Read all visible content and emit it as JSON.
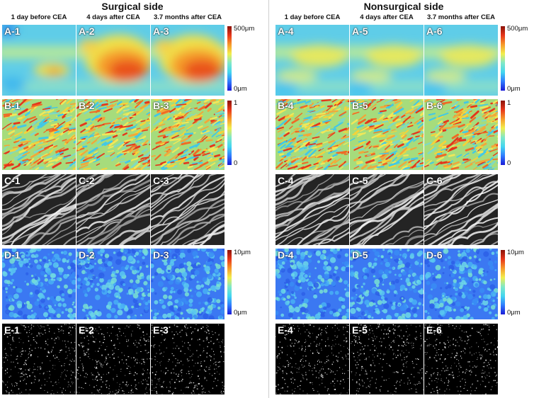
{
  "sides": [
    {
      "id": "surgical",
      "title": "Surgical side",
      "columns": [
        "1 day before CEA",
        "4 days after CEA",
        "3.7 months after CEA"
      ],
      "rows": [
        {
          "type": "thickness",
          "labels": [
            "A-1",
            "A-2",
            "A-3"
          ],
          "scale": {
            "top": "500μm",
            "bottom": "0μm"
          }
        },
        {
          "type": "coherence",
          "labels": [
            "B-1",
            "B-2",
            "B-3"
          ],
          "scale": {
            "top": "1",
            "bottom": "0"
          }
        },
        {
          "type": "fibers",
          "labels": [
            "C-1",
            "C-2",
            "C-3"
          ],
          "scale": null
        },
        {
          "type": "diameter",
          "labels": [
            "D-1",
            "D-2",
            "D-3"
          ],
          "scale": {
            "top": "10μm",
            "bottom": "0μm"
          }
        },
        {
          "type": "dots",
          "labels": [
            "E-1",
            "E-2",
            "E-3"
          ],
          "scale": null
        }
      ]
    },
    {
      "id": "nonsurgical",
      "title": "Nonsurgical side",
      "columns": [
        "1 day before CEA",
        "4 days after CEA",
        "3.7 months after CEA"
      ],
      "rows": [
        {
          "type": "thickness",
          "labels": [
            "A-4",
            "A-5",
            "A-6"
          ],
          "scale": {
            "top": "500μm",
            "bottom": "0μm"
          }
        },
        {
          "type": "coherence",
          "labels": [
            "B-4",
            "B-5",
            "B-6"
          ],
          "scale": {
            "top": "1",
            "bottom": "0"
          }
        },
        {
          "type": "fibers",
          "labels": [
            "C-4",
            "C-5",
            "C-6"
          ],
          "scale": null
        },
        {
          "type": "diameter",
          "labels": [
            "D-4",
            "D-5",
            "D-6"
          ],
          "scale": {
            "top": "10μm",
            "bottom": "0μm"
          }
        },
        {
          "type": "dots",
          "labels": [
            "E-4",
            "E-5",
            "E-6"
          ],
          "scale": null
        }
      ]
    }
  ],
  "colormap": [
    "#1b1bd6",
    "#2f7bff",
    "#43d6f0",
    "#7fe8c8",
    "#f2ee4c",
    "#f79a2a",
    "#e8361a",
    "#8a1208"
  ]
}
